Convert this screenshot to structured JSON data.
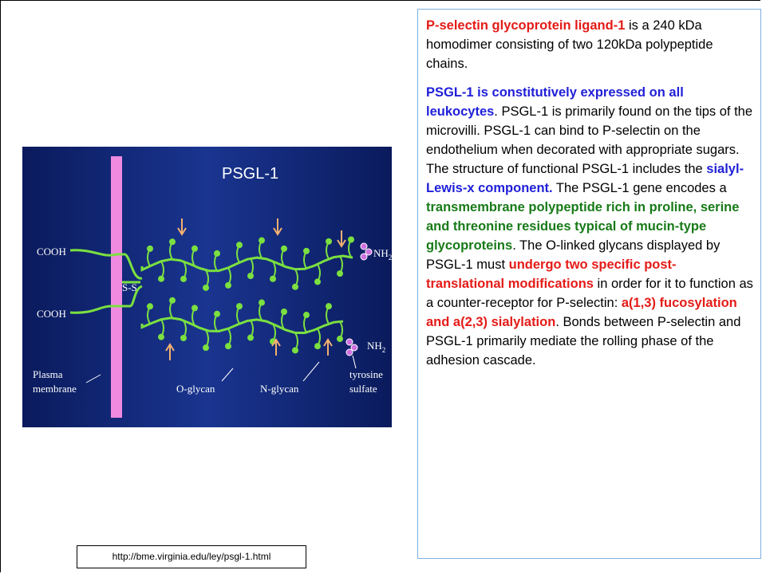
{
  "figure": {
    "title": "PSGL-1",
    "labels": {
      "cooh_top": "COOH",
      "cooh_bottom": "COOH",
      "disulfide": "S-S",
      "nh2_top": {
        "text": "NH",
        "sub": "2"
      },
      "nh2_bottom": {
        "text": "NH",
        "sub": "2"
      },
      "membrane": [
        "Plasma",
        "membrane"
      ],
      "o_glycan": "O-glycan",
      "n_glycan": "N-glycan",
      "tyrosine": [
        "tyrosine",
        "sulfate"
      ]
    }
  },
  "source": "http://bme.virginia.edu/ley/psgl-1.html",
  "text": {
    "paragraphs": [
      {
        "runs": [
          {
            "text": "P-selectin glycoprotein ligand-1",
            "style": "red"
          },
          {
            "text": " is a 240 kDa homodimer consisting of two 120kDa polypeptide chains.",
            "style": "plain"
          }
        ]
      },
      {
        "runs": [
          {
            "text": "PSGL-1 is constitutively expressed on all leukocytes",
            "style": "blue"
          },
          {
            "text": ". PSGL-1 is primarily found on the tips of the microvilli. PSGL-1 can bind to P-selectin on the endothelium when decorated with appropriate sugars. The structure of functional PSGL-1 includes the ",
            "style": "plain"
          },
          {
            "text": "sialyl-Lewis-x component.",
            "style": "blue"
          },
          {
            "text": " The PSGL-1 gene encodes a ",
            "style": "plain"
          },
          {
            "text": "transmembrane polypeptide rich in proline, serine and threonine residues typical of mucin-type glycoproteins",
            "style": "green"
          },
          {
            "text": ". The O-linked glycans displayed by PSGL-1 must ",
            "style": "plain"
          },
          {
            "text": "undergo two specific post-translational modifications",
            "style": "red"
          },
          {
            "text": " in order for it to function as a counter-receptor for P-selectin: ",
            "style": "plain"
          },
          {
            "text": "a(1,3) fucosylation and a(2,3) sialylation",
            "style": "red"
          },
          {
            "text": ". Bonds between P-selectin and PSGL-1 primarily mediate the rolling phase of the adhesion cascade.",
            "style": "plain"
          }
        ]
      }
    ]
  }
}
